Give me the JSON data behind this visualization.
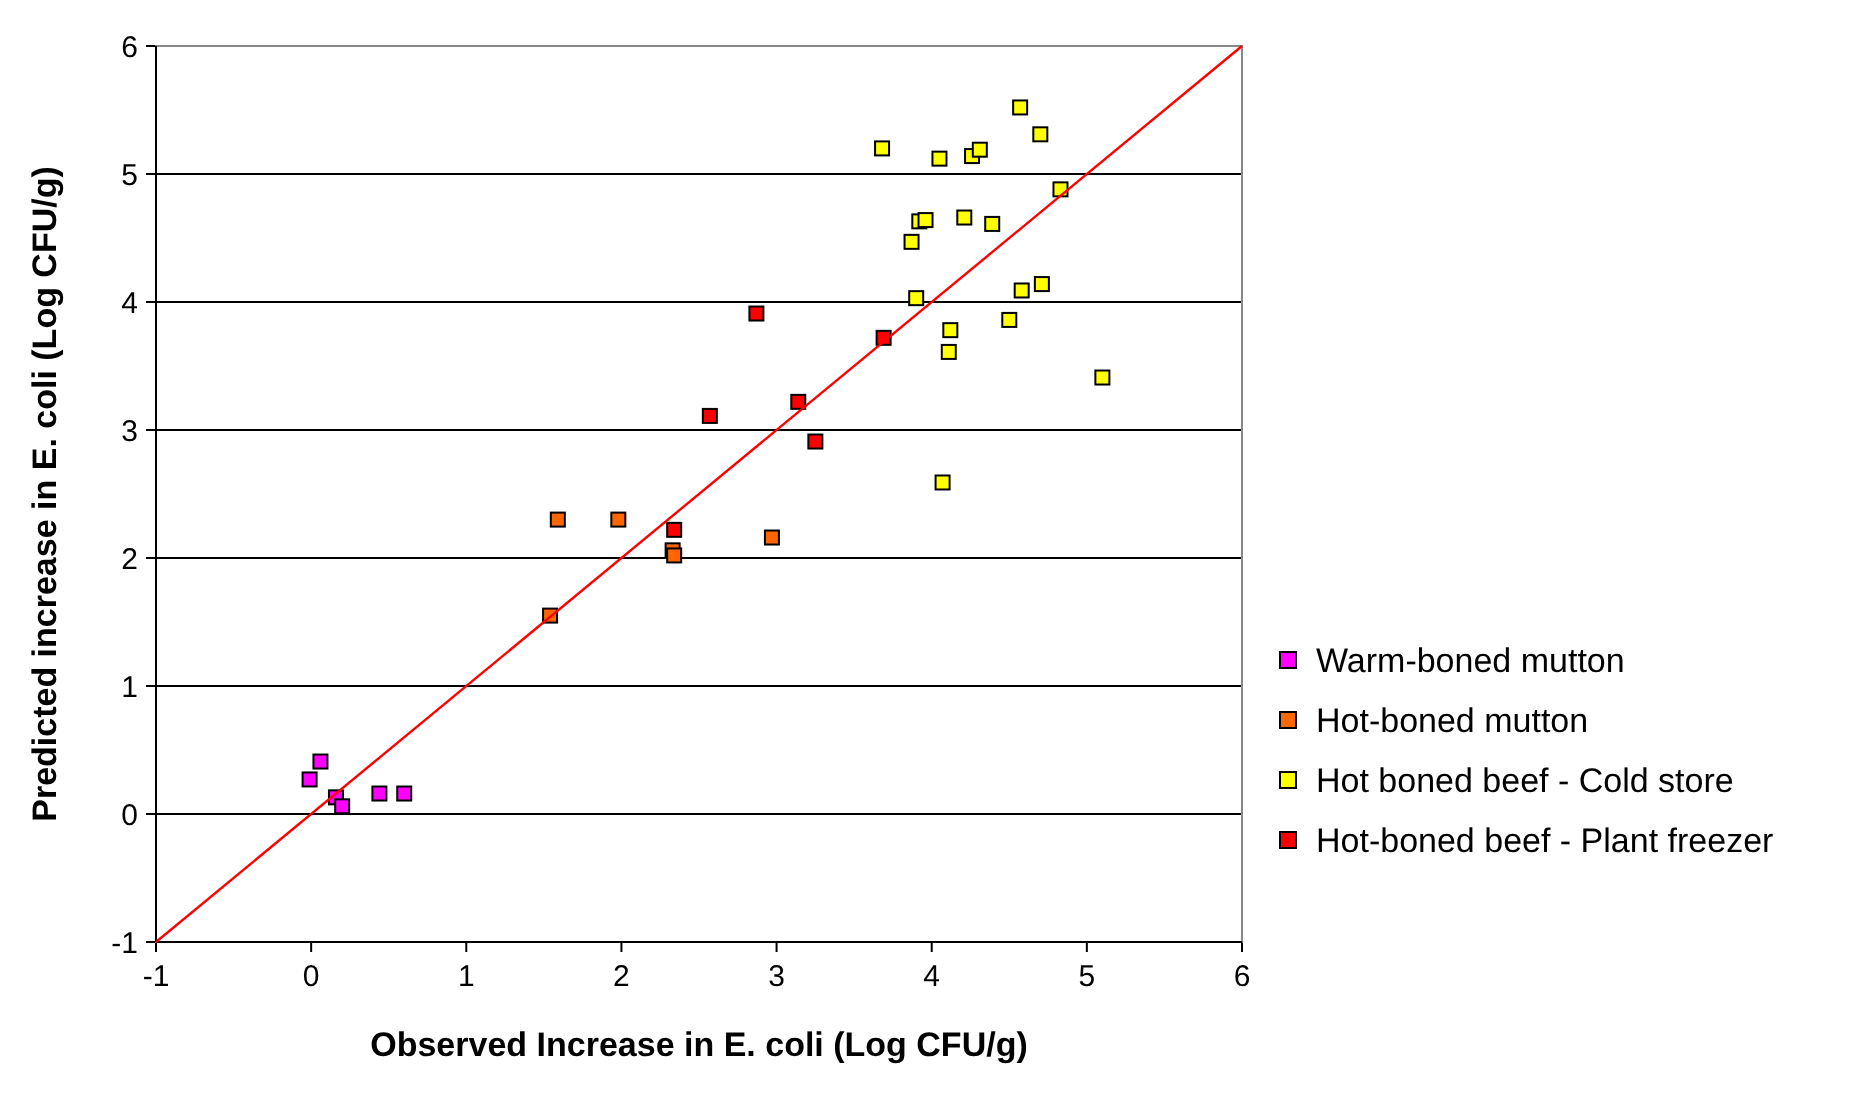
{
  "chart_data": {
    "type": "scatter",
    "xlabel": "Observed Increase in E. coli (Log CFU/g)",
    "ylabel": "Predicted increase in E. coli (Log CFU/g)",
    "xlim": [
      -1,
      6
    ],
    "ylim": [
      -1,
      6
    ],
    "xticks": [
      -1,
      0,
      1,
      2,
      3,
      4,
      5,
      6
    ],
    "yticks": [
      -1,
      0,
      1,
      2,
      3,
      4,
      5,
      6
    ],
    "grid": "y",
    "legend": "right",
    "marker": "square",
    "series": [
      {
        "name": "Warm-boned mutton",
        "color": "#ff00ff",
        "x": [
          0.06,
          -0.01,
          0.16,
          0.2,
          0.44,
          0.6
        ],
        "values": [
          0.41,
          0.27,
          0.13,
          0.06,
          0.16,
          0.16
        ]
      },
      {
        "name": "Hot-boned mutton",
        "color": "#ff6600",
        "x": [
          1.59,
          1.98,
          2.33,
          2.34,
          2.97,
          1.54
        ],
        "values": [
          2.3,
          2.3,
          2.06,
          2.02,
          2.16,
          1.55
        ]
      },
      {
        "name": "Hot boned beef - Cold store",
        "color": "#ffff00",
        "x": [
          3.68,
          4.05,
          4.26,
          4.31,
          4.57,
          4.7,
          4.83,
          3.92,
          3.96,
          4.21,
          4.39,
          3.87,
          3.9,
          4.58,
          4.71,
          4.5,
          4.12,
          4.11,
          5.1,
          4.07
        ],
        "values": [
          5.2,
          5.12,
          5.14,
          5.19,
          5.52,
          5.31,
          4.88,
          4.63,
          4.64,
          4.66,
          4.61,
          4.47,
          4.03,
          4.09,
          4.14,
          3.86,
          3.78,
          3.61,
          3.41,
          2.59
        ]
      },
      {
        "name": "Hot-boned beef - Plant freezer",
        "color": "#ff0000",
        "x": [
          2.87,
          3.69,
          2.57,
          3.14,
          3.25,
          2.34
        ],
        "values": [
          3.91,
          3.72,
          3.11,
          3.22,
          2.91,
          2.22
        ]
      },
      {
        "type": "line",
        "color": "#ff0000",
        "marker": "none",
        "x": [
          -1,
          6
        ],
        "values": [
          -1,
          6
        ]
      }
    ]
  }
}
